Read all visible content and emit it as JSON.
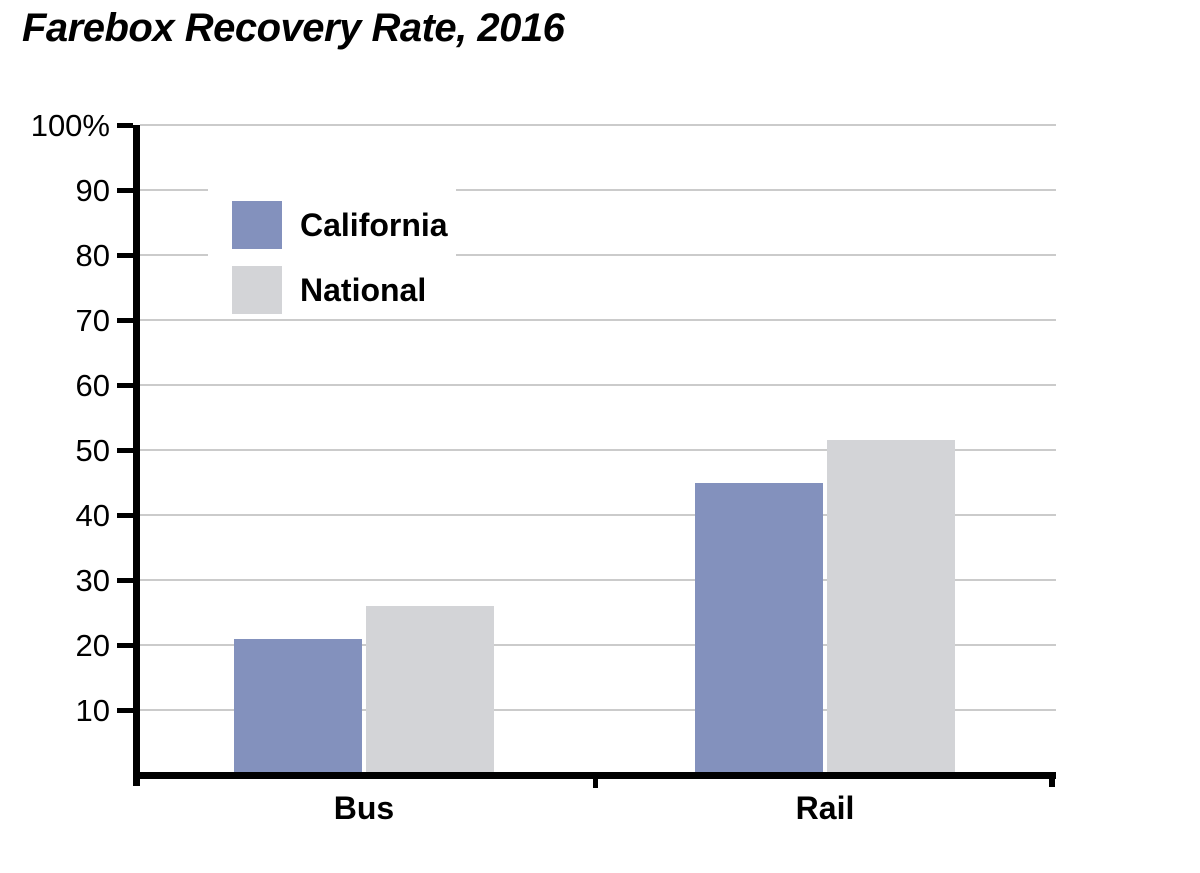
{
  "chart_data": {
    "type": "bar",
    "title": "Farebox Recovery Rate, 2016",
    "categories": [
      "Bus",
      "Rail"
    ],
    "series": [
      {
        "name": "California",
        "color": "#8391BD",
        "values": [
          21,
          45
        ]
      },
      {
        "name": "National",
        "color": "#D3D4D7",
        "values": [
          26,
          51.5
        ]
      }
    ],
    "ylabel": "",
    "xlabel": "",
    "ylim": [
      0,
      100
    ],
    "ytick_interval": 10,
    "ytick_labels": [
      "10",
      "20",
      "30",
      "40",
      "50",
      "60",
      "70",
      "80",
      "90",
      "100%"
    ],
    "grid": true,
    "legend_position": "top-left-inside",
    "colors": {
      "axis": "#000000",
      "gridline": "#CBCBCB",
      "background": "#FFFFFF",
      "text": "#000000"
    }
  }
}
